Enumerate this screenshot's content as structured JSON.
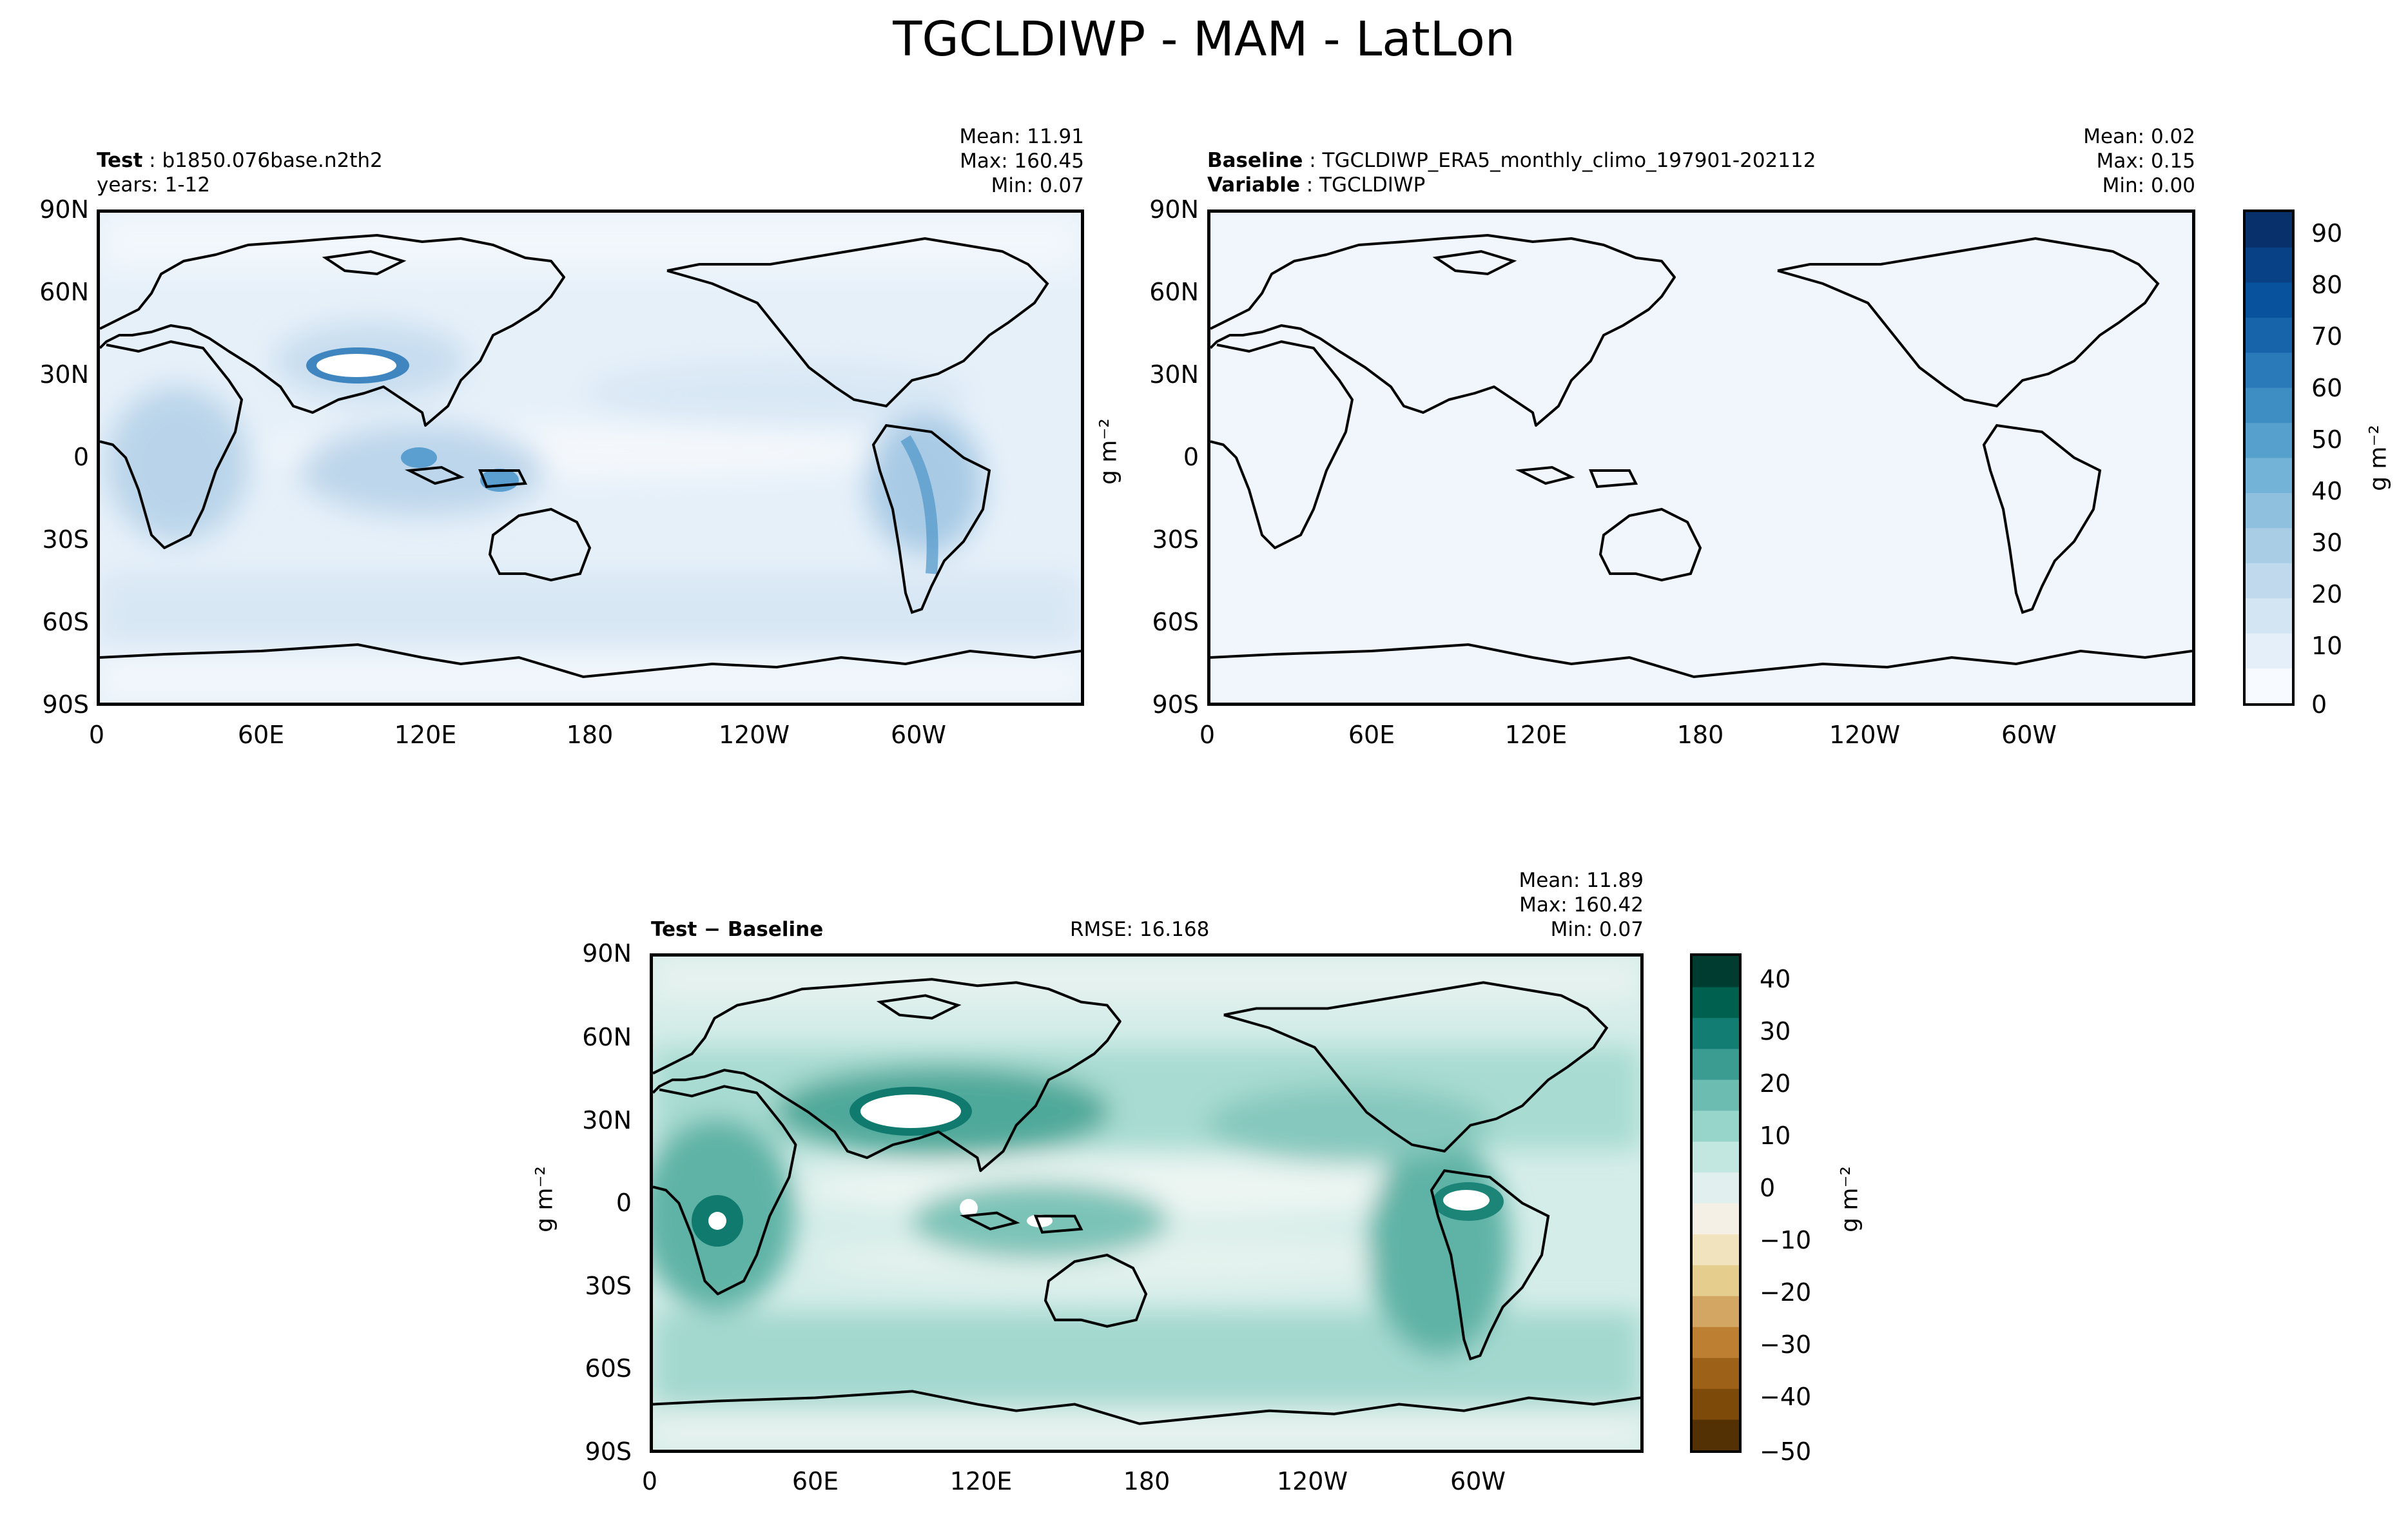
{
  "title": "TGCLDIWP - MAM - LatLon",
  "test": {
    "label": "Test",
    "case": "b1850.076base.n2th2",
    "years": "years: 1-12",
    "mean": "Mean: 11.91",
    "max": "Max: 160.45",
    "min": "Min:  0.07"
  },
  "baseline": {
    "label": "Baseline",
    "case": "TGCLDIWP_ERA5_monthly_climo_197901-202112",
    "variable_label": "Variable",
    "variable": "TGCLDIWP",
    "mean": "Mean:  0.02",
    "max": "Max:  0.15",
    "min": "Min:  0.00"
  },
  "diff": {
    "label": "Test − Baseline",
    "rmse": "RMSE: 16.168",
    "mean": "Mean: 11.89",
    "max": "Max: 160.42",
    "min": "Min:  0.07"
  },
  "units": "g m⁻²",
  "colors": {
    "blues": [
      "#f7fbff",
      "#e4eff9",
      "#d3e4f3",
      "#c1d9ed",
      "#a9cde5",
      "#8fc1de",
      "#73b3d8",
      "#56a0ce",
      "#3e8ec4",
      "#2a7ab9",
      "#1764ab",
      "#08519c",
      "#084185",
      "#08306b"
    ],
    "brbg": [
      "#543005",
      "#7d4a0a",
      "#9d6217",
      "#bd8033",
      "#d3a664",
      "#e4cd8d",
      "#f2e3bf",
      "#f5f0e6",
      "#e1f0ee",
      "#c2e7e1",
      "#97d5cb",
      "#6cbcb1",
      "#3b9c92",
      "#127d73",
      "#006050",
      "#003c30"
    ]
  },
  "chart_data": [
    {
      "type": "heatmap",
      "panel": "test",
      "xlabel": "",
      "ylabel": "",
      "x_ticks": [
        "0",
        "60E",
        "120E",
        "180",
        "120W",
        "60W"
      ],
      "y_ticks": [
        "90N",
        "60N",
        "30N",
        "0",
        "30S",
        "60S",
        "90S"
      ],
      "colorbar": {
        "label": "g m⁻²",
        "range": [
          0,
          95
        ],
        "ticks": [
          "0",
          "10",
          "20",
          "30",
          "40",
          "50",
          "60",
          "70",
          "80",
          "90"
        ]
      }
    },
    {
      "type": "heatmap",
      "panel": "baseline",
      "xlabel": "",
      "ylabel": "g m⁻²",
      "x_ticks": [
        "0",
        "60E",
        "120E",
        "180",
        "120W",
        "60W"
      ],
      "y_ticks": [
        "90N",
        "60N",
        "30N",
        "0",
        "30S",
        "60S",
        "90S"
      ]
    },
    {
      "type": "heatmap",
      "panel": "diff",
      "xlabel": "",
      "ylabel": "g m⁻²",
      "x_ticks": [
        "0",
        "60E",
        "120E",
        "180",
        "120W",
        "60W"
      ],
      "y_ticks": [
        "90N",
        "60N",
        "30N",
        "0",
        "30S",
        "60S",
        "90S"
      ],
      "colorbar": {
        "label": "g m⁻²",
        "range": [
          -50,
          45
        ],
        "ticks": [
          "40",
          "30",
          "20",
          "10",
          "0",
          "−10",
          "−20",
          "−30",
          "−40",
          "−50"
        ]
      }
    }
  ]
}
